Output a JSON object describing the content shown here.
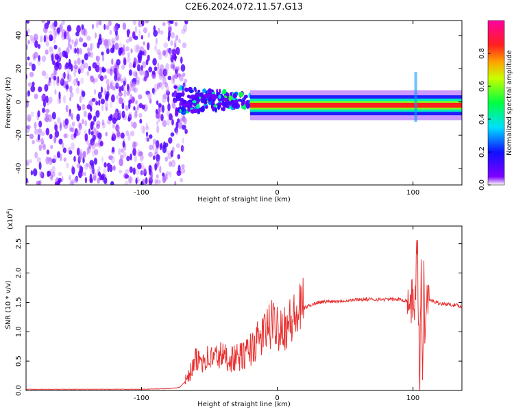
{
  "title": "C2E6.2024.072.11.57.G13",
  "chart_data": [
    {
      "type": "heatmap",
      "xlabel": "Height of straight line (km)",
      "ylabel": "Frequency (Hz)",
      "xlim": [
        -185,
        136
      ],
      "ylim": [
        -50,
        49
      ],
      "xticks": [
        -100,
        0,
        100
      ],
      "yticks": [
        -40,
        -20,
        0,
        20,
        40
      ],
      "colorbar": {
        "label": "Normalized spectral amplitude",
        "range": [
          0.0,
          1.0
        ],
        "ticks": [
          0.0,
          0.2,
          0.4,
          0.6,
          0.8
        ],
        "colormap": "purple-blue-cyan-green-yellow-red-magenta"
      },
      "features": [
        {
          "description": "diffuse noise",
          "x_range": [
            -185,
            -75
          ],
          "amplitude": 0.15
        },
        {
          "description": "noisy band",
          "x_range": [
            -75,
            -20
          ],
          "freq_range": [
            -10,
            10
          ],
          "amplitude": 0.45
        },
        {
          "description": "narrow band",
          "x_range": [
            -20,
            136
          ],
          "center_freq": -2,
          "amplitude": 0.95
        },
        {
          "description": "spike",
          "x": 102,
          "freq_range": [
            -12,
            18
          ],
          "amplitude": 0.3
        }
      ]
    },
    {
      "type": "line",
      "xlabel": "Height of straight line (km)",
      "ylabel": "SNR (10 * v/v)",
      "yscale_label": "(x10",
      "yscale_exp": "4",
      "xlim": [
        -185,
        136
      ],
      "ylim": [
        0,
        2.8
      ],
      "xticks": [
        -100,
        0,
        100
      ],
      "yticks": [
        0.0,
        0.5,
        1.0,
        1.5,
        2.0,
        2.5
      ],
      "ytick_labels": [
        "0.0",
        "0.5",
        "1.0",
        "1.5",
        "2.0",
        "2.5"
      ],
      "color": "#e83030",
      "series": [
        {
          "x": [
            -185,
            -150,
            -120,
            -100,
            -80,
            -72,
            -66,
            -60,
            -54,
            -48,
            -42,
            -36,
            -30,
            -24,
            -18,
            -12,
            -6,
            0,
            6,
            12,
            18,
            24,
            30,
            40,
            50,
            60,
            70,
            80,
            90,
            97,
            100,
            102,
            103,
            104,
            105,
            106,
            107,
            108,
            109,
            110,
            115,
            120,
            125,
            130,
            136
          ],
          "y": [
            0.02,
            0.02,
            0.02,
            0.02,
            0.03,
            0.05,
            0.2,
            0.5,
            0.55,
            0.55,
            0.6,
            0.55,
            0.55,
            0.6,
            0.75,
            0.9,
            1.1,
            1.12,
            1.1,
            1.2,
            1.38,
            1.45,
            1.5,
            1.52,
            1.53,
            1.55,
            1.55,
            1.55,
            1.55,
            1.52,
            1.5,
            1.6,
            2.7,
            1.2,
            0.1,
            2.2,
            0.3,
            1.9,
            0.8,
            1.55,
            1.52,
            1.48,
            1.47,
            1.46,
            1.43
          ]
        }
      ]
    }
  ]
}
